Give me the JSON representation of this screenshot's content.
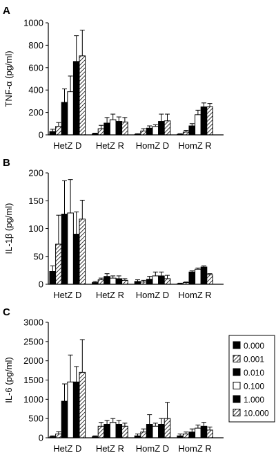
{
  "chart_data": [
    {
      "type": "bar",
      "panel": "A",
      "ylabel": "TNF-α (pg/ml)",
      "ylim": [
        0,
        1000
      ],
      "yticks": [
        0,
        200,
        400,
        600,
        800,
        1000
      ],
      "categories": [
        "HetZ D",
        "HetZ R",
        "HomZ D",
        "HomZ R"
      ],
      "series": [
        {
          "name": "0.000",
          "values": [
            30,
            10,
            5,
            5
          ],
          "errors": [
            20,
            5,
            5,
            5
          ]
        },
        {
          "name": "0.001",
          "values": [
            75,
            55,
            35,
            25
          ],
          "errors": [
            35,
            30,
            20,
            15
          ]
        },
        {
          "name": "0.010",
          "values": [
            290,
            105,
            60,
            80
          ],
          "errors": [
            120,
            50,
            20,
            20
          ]
        },
        {
          "name": "0.100",
          "values": [
            385,
            135,
            75,
            180
          ],
          "errors": [
            140,
            50,
            15,
            40
          ]
        },
        {
          "name": "1.000",
          "values": [
            655,
            120,
            120,
            250
          ],
          "errors": [
            230,
            40,
            65,
            35
          ]
        },
        {
          "name": "10.000",
          "values": [
            705,
            115,
            125,
            250
          ],
          "errors": [
            230,
            40,
            60,
            30
          ]
        }
      ]
    },
    {
      "type": "bar",
      "panel": "B",
      "ylabel": "IL-1β (pg/ml)",
      "ylim": [
        0,
        200
      ],
      "yticks": [
        0,
        50,
        100,
        150,
        200
      ],
      "categories": [
        "HetZ D",
        "HetZ R",
        "HomZ D",
        "HomZ R"
      ],
      "series": [
        {
          "name": "0.000",
          "values": [
            23,
            3,
            5,
            1
          ],
          "errors": [
            10,
            2,
            3,
            1
          ]
        },
        {
          "name": "0.001",
          "values": [
            72,
            8,
            4,
            3
          ],
          "errors": [
            52,
            3,
            3,
            1
          ]
        },
        {
          "name": "0.010",
          "values": [
            126,
            14,
            9,
            22
          ],
          "errors": [
            60,
            5,
            5,
            2
          ]
        },
        {
          "name": "0.100",
          "values": [
            128,
            11,
            15,
            27
          ],
          "errors": [
            60,
            4,
            7,
            2
          ]
        },
        {
          "name": "1.000",
          "values": [
            90,
            10,
            15,
            31
          ],
          "errors": [
            40,
            5,
            7,
            2
          ]
        },
        {
          "name": "10.000",
          "values": [
            117,
            7,
            10,
            17
          ],
          "errors": [
            34,
            3,
            6,
            2
          ]
        }
      ]
    },
    {
      "type": "bar",
      "panel": "C",
      "ylabel": "IL-6 (pg/ml)",
      "ylim": [
        0,
        3000
      ],
      "yticks": [
        0,
        500,
        1000,
        1500,
        2000,
        2500,
        3000
      ],
      "categories": [
        "HetZ D",
        "HetZ R",
        "HomZ D",
        "HomZ R"
      ],
      "series": [
        {
          "name": "0.000",
          "values": [
            30,
            30,
            50,
            50
          ],
          "errors": [
            20,
            20,
            50,
            50
          ]
        },
        {
          "name": "0.001",
          "values": [
            100,
            300,
            150,
            100
          ],
          "errors": [
            60,
            100,
            80,
            50
          ]
        },
        {
          "name": "0.010",
          "values": [
            950,
            350,
            350,
            150
          ],
          "errors": [
            450,
            100,
            250,
            80
          ]
        },
        {
          "name": "0.100",
          "values": [
            1450,
            400,
            300,
            250
          ],
          "errors": [
            700,
            100,
            80,
            80
          ]
        },
        {
          "name": "1.000",
          "values": [
            1450,
            350,
            350,
            300
          ],
          "errors": [
            400,
            100,
            150,
            100
          ]
        },
        {
          "name": "10.000",
          "values": [
            1700,
            300,
            500,
            200
          ],
          "errors": [
            850,
            80,
            420,
            80
          ]
        }
      ]
    }
  ],
  "legend": {
    "entries": [
      "0.000",
      "0.001",
      "0.010",
      "0.100",
      "1.000",
      "10.000"
    ],
    "fills": [
      "solid",
      "hatch",
      "solid",
      "open",
      "solid",
      "hatch"
    ]
  },
  "colors": {
    "solid": "#000000",
    "open": "#ffffff",
    "hatch": "#000000"
  }
}
